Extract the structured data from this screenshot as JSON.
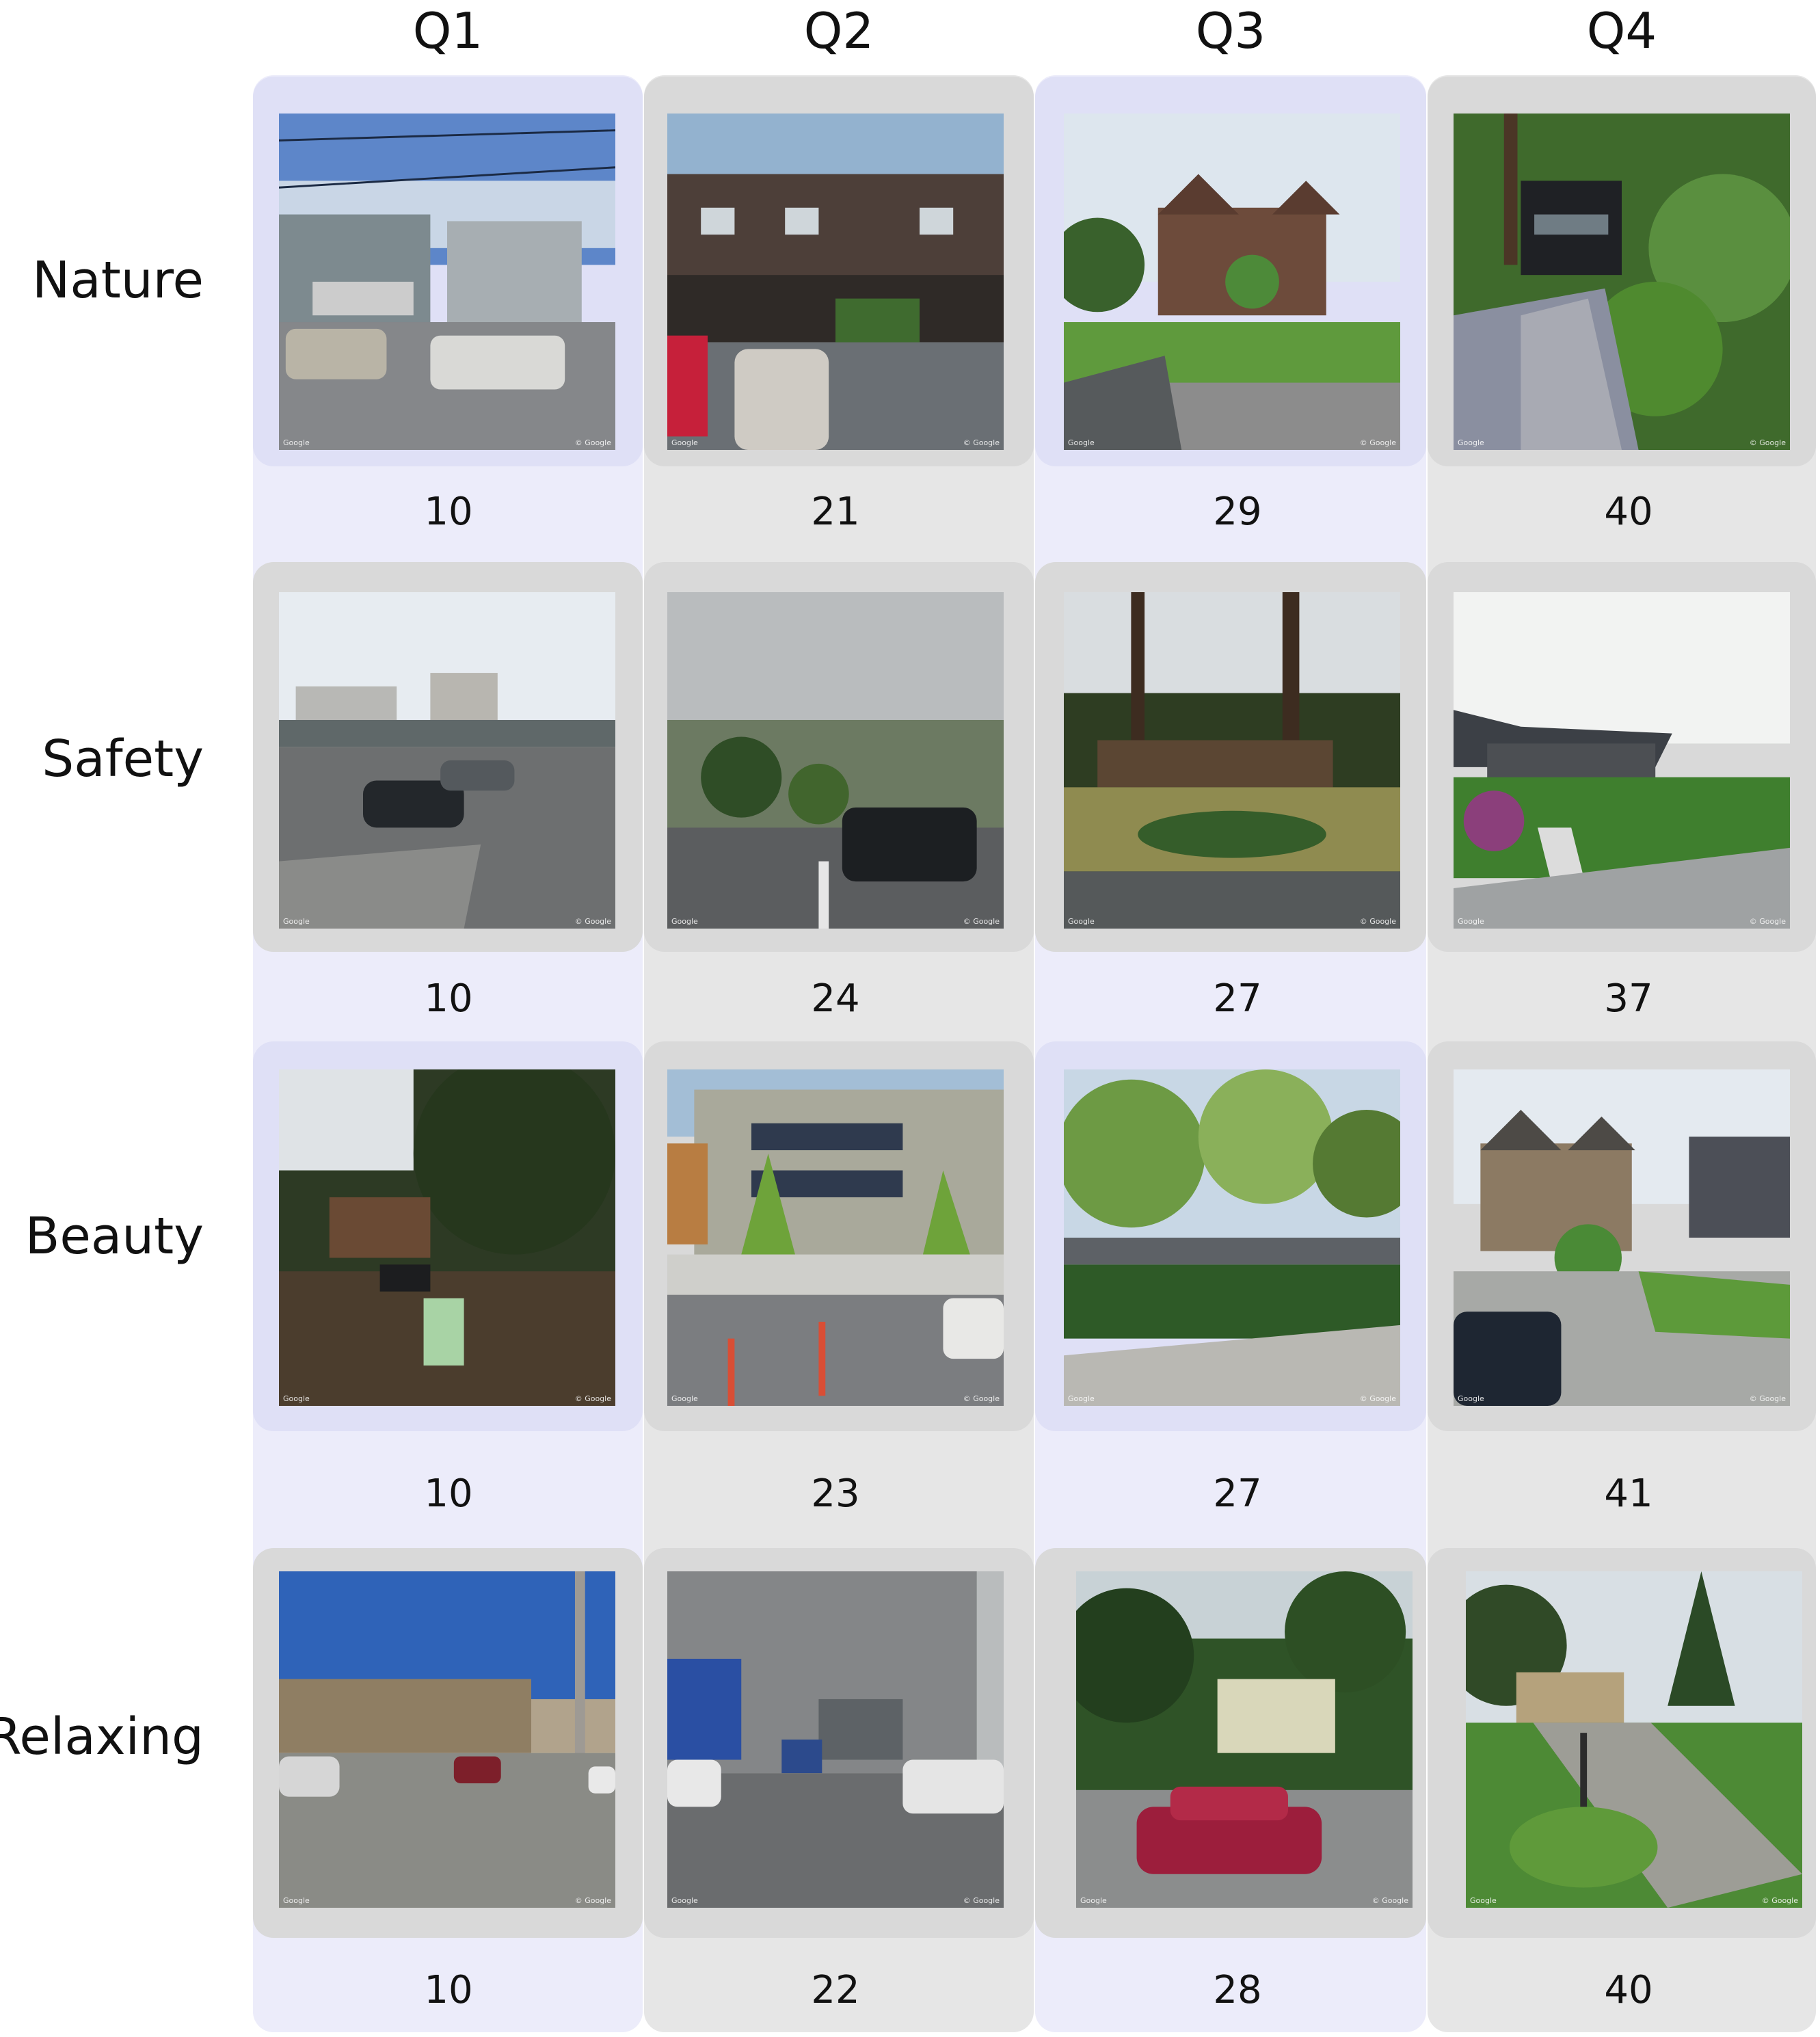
{
  "columns": [
    "Q1",
    "Q2",
    "Q3",
    "Q4"
  ],
  "rows": [
    {
      "label": "Nature",
      "scores": [
        "10",
        "21",
        "29",
        "40"
      ]
    },
    {
      "label": "Safety",
      "scores": [
        "10",
        "24",
        "27",
        "37"
      ]
    },
    {
      "label": "Beauty",
      "scores": [
        "10",
        "23",
        "27",
        "41"
      ]
    },
    {
      "label": "Relaxing",
      "scores": [
        "10",
        "22",
        "28",
        "40"
      ]
    }
  ],
  "watermark": {
    "left": "Google",
    "right": "© Google"
  },
  "colors": {
    "lavender_column": "#ececfa",
    "gray_column": "#e6e6e6",
    "lavender_band": "#dfe0f6",
    "gray_band": "#d9d9d9"
  }
}
